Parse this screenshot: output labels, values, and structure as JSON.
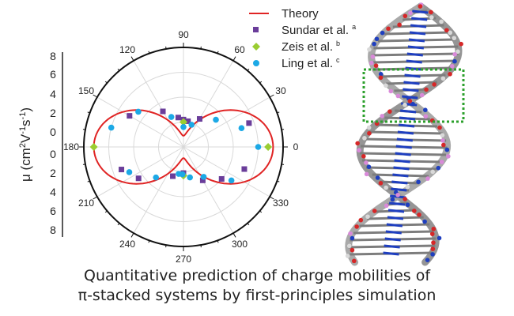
{
  "chart_data": {
    "type": "polar",
    "title": "",
    "ylabel": "μ (cm²V⁻¹s⁻¹)",
    "ylabel_parts": {
      "mu": "μ (cm",
      "sq": "2",
      "v": "V",
      "neg1": "-1",
      "s": "s",
      "neg1b": "-1",
      "close": ")"
    },
    "angle_ticks": [
      "0",
      "30",
      "60",
      "90",
      "120",
      "150",
      "180",
      "210",
      "240",
      "270",
      "300",
      "330"
    ],
    "angle_tick_values": [
      0,
      30,
      60,
      90,
      120,
      150,
      180,
      210,
      240,
      270,
      300,
      330
    ],
    "radial_ticks_upper": [
      "8",
      "6",
      "4",
      "2",
      "0"
    ],
    "radial_ticks_lower": [
      "0",
      "2",
      "4",
      "6",
      "8"
    ],
    "rlim": [
      0,
      8
    ],
    "grid": true,
    "legend_position": "top-right",
    "legend": [
      {
        "label": "Theory",
        "sup": "",
        "marker": "line",
        "color": "#e02424"
      },
      {
        "label": "Sundar et al.",
        "sup": "a",
        "marker": "square",
        "color": "#6a3d9a"
      },
      {
        "label": "Zeis et al.",
        "sup": "b",
        "marker": "diamond",
        "color": "#9acd32"
      },
      {
        "label": "Ling et al.",
        "sup": "c",
        "marker": "circle",
        "color": "#1ca9e6"
      }
    ],
    "series": [
      {
        "name": "Theory",
        "model": "mu(theta) = a*cos^2(theta) + b*sin^2(theta)",
        "a": 7.2,
        "b": 0.9,
        "color": "#e02424"
      },
      {
        "name": "Sundar et al.",
        "marker": "square",
        "color": "#6a3d9a",
        "points": [
          {
            "angle": 90,
            "r": 2.2
          },
          {
            "angle": 100,
            "r": 2.4
          },
          {
            "angle": 80,
            "r": 2.1
          },
          {
            "angle": 120,
            "r": 3.3
          },
          {
            "angle": 60,
            "r": 2.6
          },
          {
            "angle": 150,
            "r": 5.0
          },
          {
            "angle": 20,
            "r": 5.6
          },
          {
            "angle": 200,
            "r": 5.3
          },
          {
            "angle": 215,
            "r": 4.4
          },
          {
            "angle": 250,
            "r": 2.5
          },
          {
            "angle": 270,
            "r": 2.1
          },
          {
            "angle": 300,
            "r": 3.1
          },
          {
            "angle": 320,
            "r": 4.0
          },
          {
            "angle": 340,
            "r": 5.2
          }
        ]
      },
      {
        "name": "Zeis et al.",
        "marker": "diamond",
        "color": "#9acd32",
        "points": [
          {
            "angle": 0,
            "r": 6.8
          },
          {
            "angle": 180,
            "r": 7.2
          },
          {
            "angle": 90,
            "r": 2.0
          },
          {
            "angle": 270,
            "r": 2.3
          }
        ]
      },
      {
        "name": "Ling et al.",
        "marker": "circle",
        "color": "#1ca9e6",
        "points": [
          {
            "angle": 0,
            "r": 6.0
          },
          {
            "angle": 18,
            "r": 4.9
          },
          {
            "angle": 40,
            "r": 3.4
          },
          {
            "angle": 70,
            "r": 1.9
          },
          {
            "angle": 90,
            "r": 1.6
          },
          {
            "angle": 112,
            "r": 2.6
          },
          {
            "angle": 142,
            "r": 4.6
          },
          {
            "angle": 165,
            "r": 6.0
          },
          {
            "angle": 205,
            "r": 4.8
          },
          {
            "angle": 228,
            "r": 3.3
          },
          {
            "angle": 260,
            "r": 2.2
          },
          {
            "angle": 268,
            "r": 2.2
          },
          {
            "angle": 282,
            "r": 2.5
          },
          {
            "angle": 304,
            "r": 2.9
          },
          {
            "angle": 325,
            "r": 4.7
          }
        ]
      }
    ]
  },
  "molecule_image": "DNA double-helix stick model with highlighted base-pair stack",
  "caption": {
    "line1": "Quantitative prediction of charge mobilities of",
    "line2": "π-stacked systems by first-principles simulation"
  },
  "colors": {
    "highlight_box": "#2ca02c",
    "carbon": "#8a8a8a",
    "oxygen": "#d62728",
    "nitrogen": "#1f3fbf",
    "phosphorus": "#d98ad9",
    "hydrogen": "#d9d9d9"
  }
}
